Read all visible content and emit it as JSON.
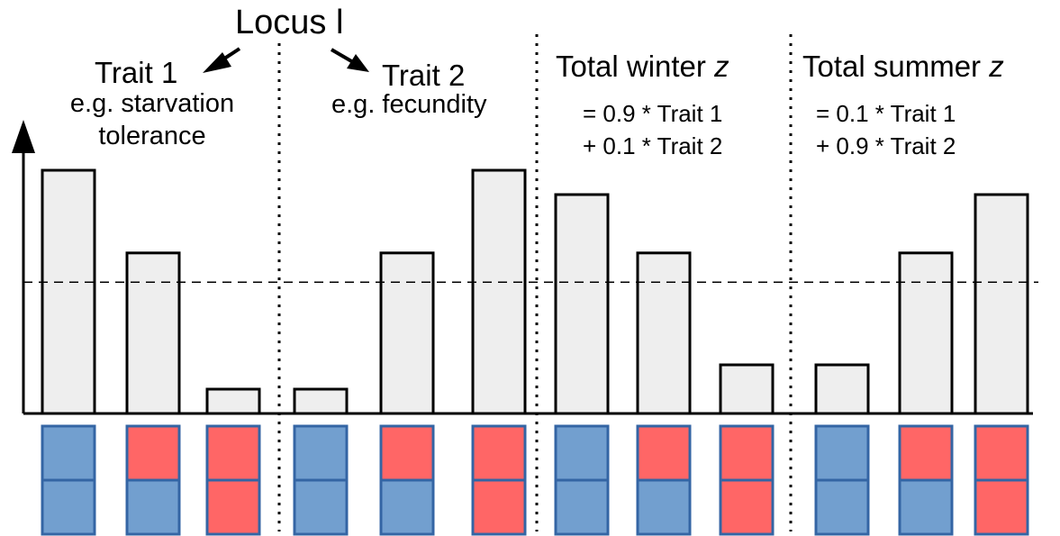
{
  "title": "Locus l",
  "panels": [
    {
      "heading": "Trait 1",
      "subtitle": "e.g. starvation\ntolerance"
    },
    {
      "heading": "Trait 2",
      "subtitle": "e.g. fecundity"
    },
    {
      "heading": "Total winter ",
      "heading_var": "z",
      "formula_line1": "= 0.9 * Trait 1",
      "formula_line2": "+ 0.1 * Trait 2"
    },
    {
      "heading": "Total summer ",
      "heading_var": "z",
      "formula_line1": "= 0.1 * Trait 1",
      "formula_line2": "+ 0.9 * Trait 2"
    }
  ],
  "reference_level": 0.54,
  "bars": [
    1.0,
    0.66,
    0.1,
    0.1,
    0.66,
    1.0,
    0.9,
    0.66,
    0.2,
    0.2,
    0.66,
    0.9
  ],
  "genotypes": [
    [
      "blue",
      "blue"
    ],
    [
      "red",
      "blue"
    ],
    [
      "red",
      "red"
    ],
    [
      "blue",
      "blue"
    ],
    [
      "red",
      "blue"
    ],
    [
      "red",
      "red"
    ],
    [
      "blue",
      "blue"
    ],
    [
      "red",
      "blue"
    ],
    [
      "red",
      "red"
    ],
    [
      "blue",
      "blue"
    ],
    [
      "red",
      "blue"
    ],
    [
      "red",
      "red"
    ]
  ],
  "colors": {
    "allele_blue": "#729fcf",
    "allele_red": "#ff6666",
    "allele_border": "#3465a4",
    "bar_fill": "#eeeeee",
    "stroke": "#000000"
  }
}
